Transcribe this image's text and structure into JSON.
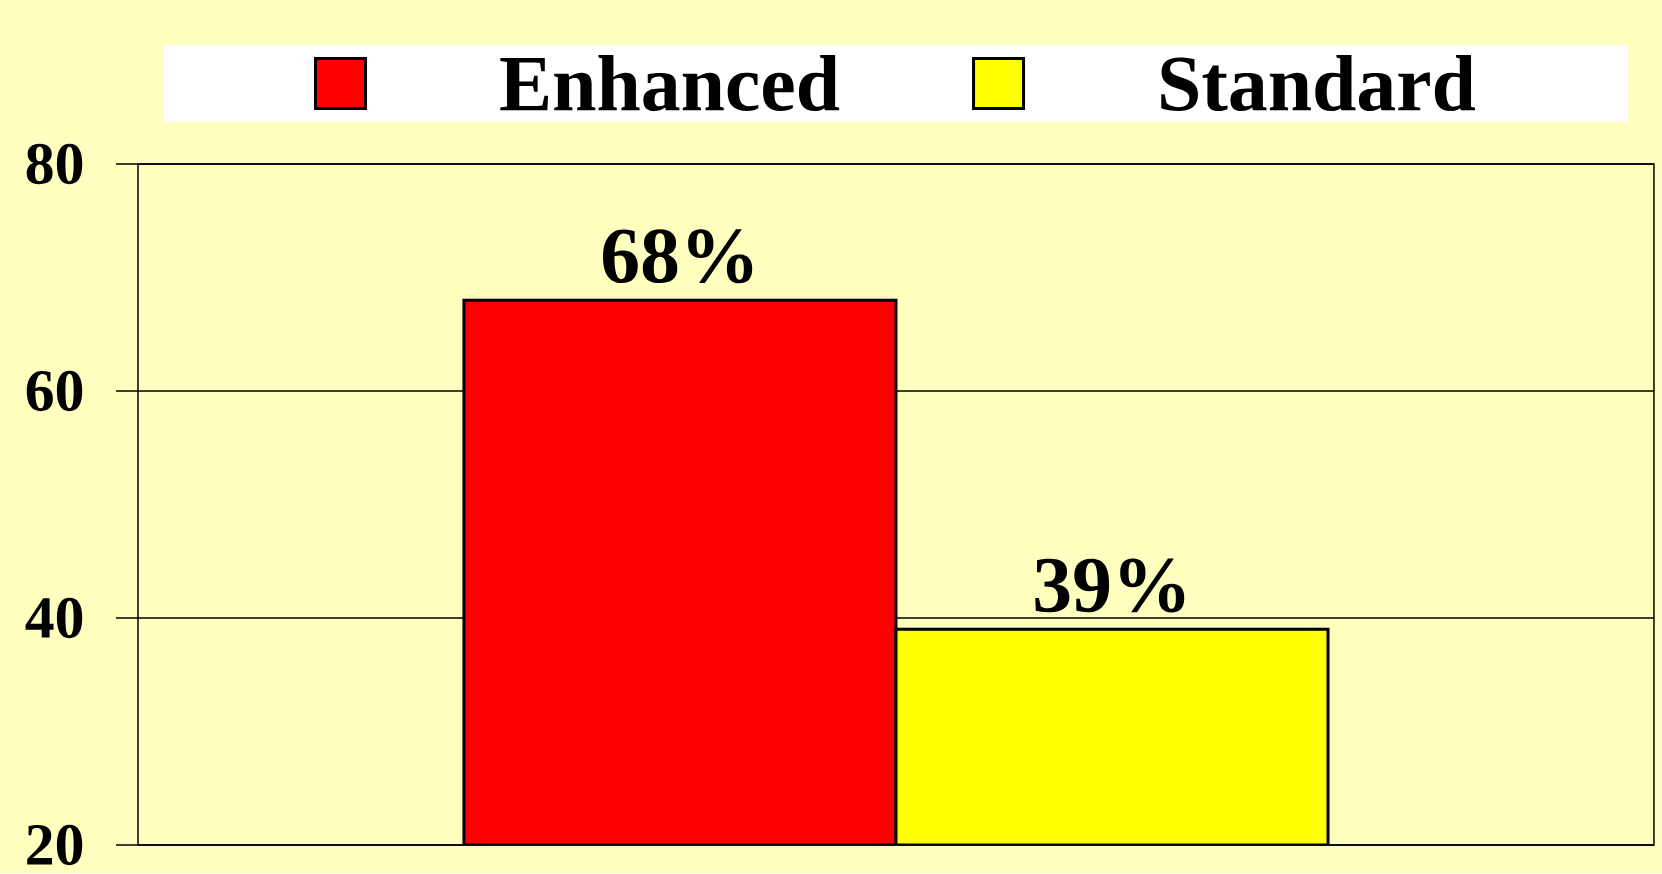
{
  "chart_data": {
    "type": "bar",
    "categories": [
      null
    ],
    "series": [
      {
        "name": "Enhanced",
        "color": "#ff0000",
        "values": [
          68
        ],
        "value_labels": [
          "68%"
        ]
      },
      {
        "name": "Standard",
        "color": "#ffff00",
        "values": [
          39
        ],
        "value_labels": [
          "39%"
        ]
      }
    ],
    "ylim": [
      20,
      80
    ],
    "yticks": [
      20,
      40,
      60,
      80
    ],
    "grid": "y",
    "legend": "top"
  }
}
